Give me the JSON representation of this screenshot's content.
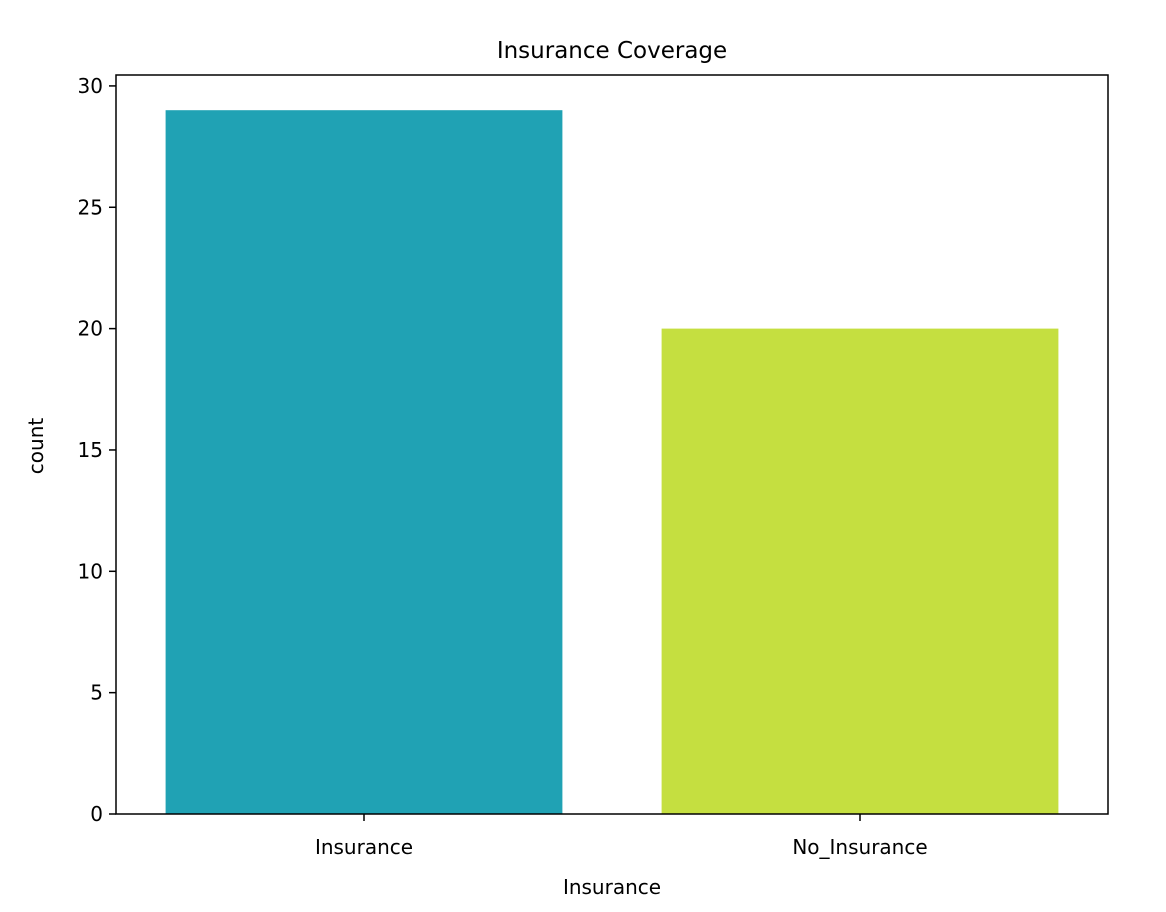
{
  "chart_data": {
    "type": "bar",
    "title": "Insurance Coverage",
    "xlabel": "Insurance",
    "ylabel": "count",
    "categories": [
      "Insurance",
      "No_Insurance"
    ],
    "values": [
      29,
      20
    ],
    "colors": [
      "#20a2b4",
      "#c5df40"
    ],
    "ylim": [
      0,
      30.45
    ],
    "yticks": [
      "0",
      "5",
      "10",
      "15",
      "20",
      "25",
      "30"
    ],
    "grid": false,
    "legend": "none"
  }
}
